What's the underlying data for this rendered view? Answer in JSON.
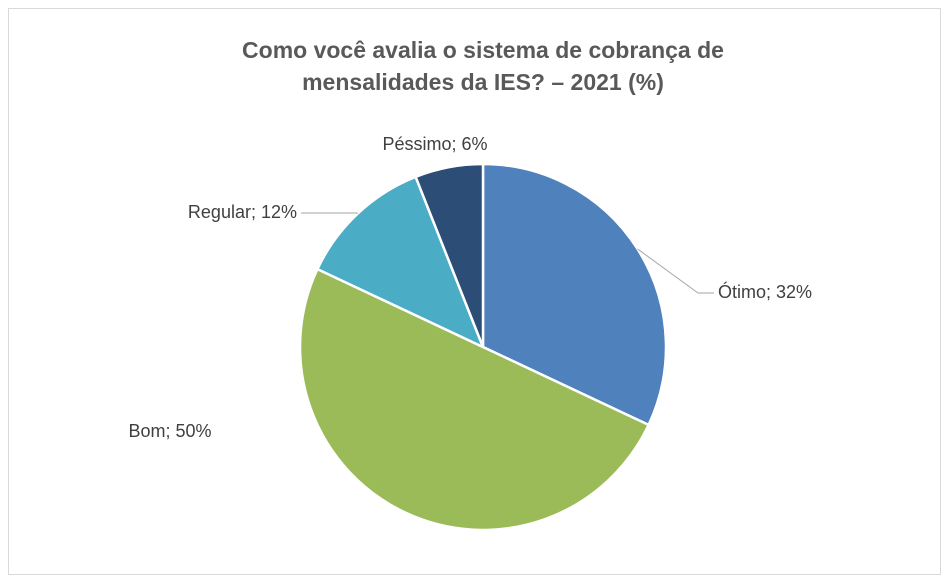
{
  "chart_data": {
    "type": "pie",
    "title": [
      "Como você avalia o sistema de cobrança de",
      "mensalidades da IES? – 2021 (%)"
    ],
    "values": [
      32,
      50,
      12,
      6
    ],
    "value_labels": [
      "Ótimo; 32%",
      "Bom; 50%",
      "Regular; 12%",
      "Péssimo; 6%"
    ],
    "colors": [
      "#4f81bd",
      "#9bbb59",
      "#4bacc6",
      "#2c4d75"
    ]
  }
}
